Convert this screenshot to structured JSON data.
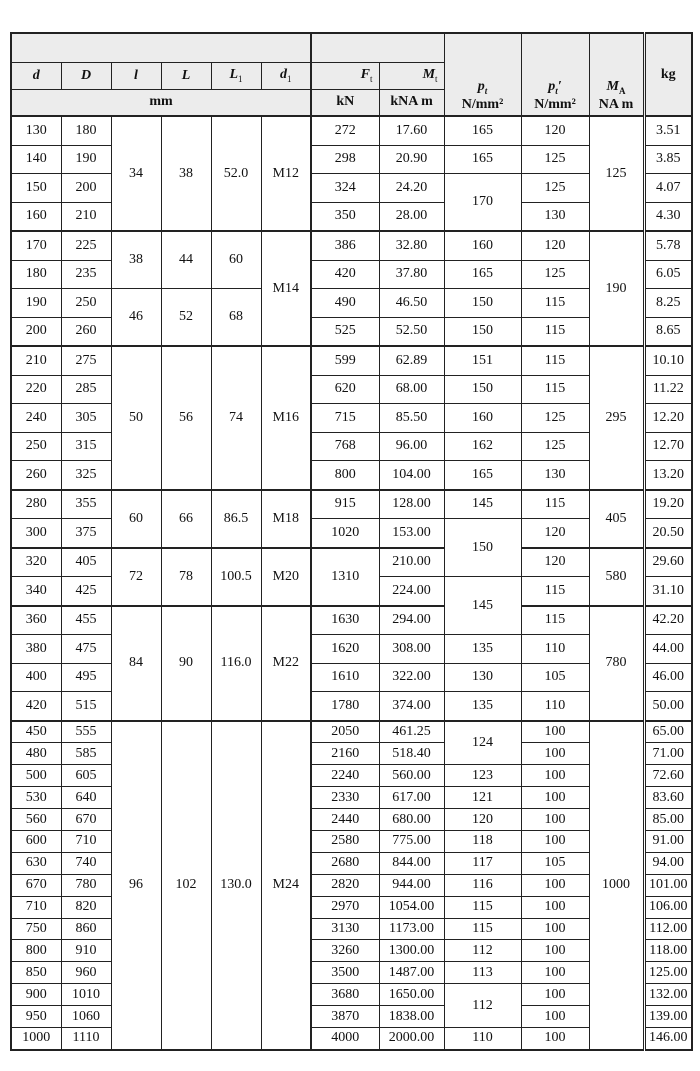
{
  "header": {
    "d": "d",
    "D": "D",
    "l": "l",
    "L": "L",
    "L1": {
      "sym": "L",
      "sub": "1"
    },
    "d1": {
      "sym": "d",
      "sub": "1"
    },
    "Ft": {
      "sym": "F",
      "sub": "t"
    },
    "Mt": {
      "sym": "M",
      "sub": "t"
    },
    "mm": "mm",
    "kN": "kN",
    "kNAm": "kNA  m",
    "pt": {
      "sym": "p",
      "sub": "t",
      "unit": "N/mm²"
    },
    "pt2": {
      "sym": "p",
      "sub": "t",
      "prime": "′",
      "unit": "N/mm²"
    },
    "MA": {
      "sym": "M",
      "sub": "A",
      "unit": "NA  m"
    },
    "kg": "kg"
  },
  "body": {
    "rows": [
      [
        "130",
        "180",
        {
          "v": "34",
          "rs": 4
        },
        {
          "v": "38",
          "rs": 4
        },
        {
          "v": "52.0",
          "rs": 4
        },
        {
          "v": "M12",
          "rs": 4
        },
        "272",
        "17.60",
        "165",
        "120",
        {
          "v": "125",
          "rs": 4
        },
        "3.51"
      ],
      [
        "140",
        "190",
        null,
        null,
        null,
        null,
        "298",
        "20.90",
        "165",
        "125",
        null,
        "3.85"
      ],
      [
        "150",
        "200",
        null,
        null,
        null,
        null,
        "324",
        "24.20",
        {
          "v": "170",
          "rs": 2
        },
        "125",
        null,
        "4.07"
      ],
      [
        "160",
        "210",
        null,
        null,
        null,
        null,
        "350",
        "28.00",
        null,
        "130",
        null,
        "4.30"
      ],
      [
        "170",
        "225",
        {
          "v": "38",
          "rs": 2
        },
        {
          "v": "44",
          "rs": 2
        },
        {
          "v": "60",
          "rs": 2
        },
        {
          "v": "M14",
          "rs": 4
        },
        "386",
        "32.80",
        "160",
        "120",
        {
          "v": "190",
          "rs": 4
        },
        "5.78"
      ],
      [
        "180",
        "235",
        null,
        null,
        null,
        null,
        "420",
        "37.80",
        "165",
        "125",
        null,
        "6.05"
      ],
      [
        "190",
        "250",
        {
          "v": "46",
          "rs": 2
        },
        {
          "v": "52",
          "rs": 2
        },
        {
          "v": "68",
          "rs": 2
        },
        null,
        "490",
        "46.50",
        "150",
        "115",
        null,
        "8.25"
      ],
      [
        "200",
        "260",
        null,
        null,
        null,
        null,
        "525",
        "52.50",
        "150",
        "115",
        null,
        "8.65"
      ],
      [
        "210",
        "275",
        {
          "v": "50",
          "rs": 5
        },
        {
          "v": "56",
          "rs": 5
        },
        {
          "v": "74",
          "rs": 5
        },
        {
          "v": "M16",
          "rs": 5
        },
        "599",
        "62.89",
        "151",
        "115",
        {
          "v": "295",
          "rs": 5
        },
        "10.10"
      ],
      [
        "220",
        "285",
        null,
        null,
        null,
        null,
        "620",
        "68.00",
        "150",
        "115",
        null,
        "11.22"
      ],
      [
        "240",
        "305",
        null,
        null,
        null,
        null,
        "715",
        "85.50",
        "160",
        "125",
        null,
        "12.20"
      ],
      [
        "250",
        "315",
        null,
        null,
        null,
        null,
        "768",
        "96.00",
        "162",
        "125",
        null,
        "12.70"
      ],
      [
        "260",
        "325",
        null,
        null,
        null,
        null,
        "800",
        "104.00",
        "165",
        "130",
        null,
        "13.20"
      ],
      [
        "280",
        "355",
        {
          "v": "60",
          "rs": 2
        },
        {
          "v": "66",
          "rs": 2
        },
        {
          "v": "86.5",
          "rs": 2
        },
        {
          "v": "M18",
          "rs": 2
        },
        "915",
        "128.00",
        "145",
        "115",
        {
          "v": "405",
          "rs": 2
        },
        "19.20"
      ],
      [
        "300",
        "375",
        null,
        null,
        null,
        null,
        "1020",
        "153.00",
        {
          "v": "150",
          "rs": 2
        },
        "120",
        null,
        "20.50"
      ],
      [
        "320",
        "405",
        {
          "v": "72",
          "rs": 2
        },
        {
          "v": "78",
          "rs": 2
        },
        {
          "v": "100.5",
          "rs": 2
        },
        {
          "v": "M20",
          "rs": 2
        },
        {
          "v": "1310",
          "rs": 2
        },
        "210.00",
        null,
        "120",
        {
          "v": "580",
          "rs": 2
        },
        "29.60"
      ],
      [
        "340",
        "425",
        null,
        null,
        null,
        null,
        null,
        "224.00",
        {
          "v": "145",
          "rs": 2
        },
        "115",
        null,
        "31.10"
      ],
      [
        "360",
        "455",
        {
          "v": "84",
          "rs": 4
        },
        {
          "v": "90",
          "rs": 4
        },
        {
          "v": "116.0",
          "rs": 4
        },
        {
          "v": "M22",
          "rs": 4
        },
        "1630",
        "294.00",
        null,
        "115",
        {
          "v": "780",
          "rs": 4
        },
        "42.20"
      ],
      [
        "380",
        "475",
        null,
        null,
        null,
        null,
        "1620",
        "308.00",
        "135",
        "110",
        null,
        "44.00"
      ],
      [
        "400",
        "495",
        null,
        null,
        null,
        null,
        "1610",
        "322.00",
        "130",
        "105",
        null,
        "46.00"
      ],
      [
        "420",
        "515",
        null,
        null,
        null,
        null,
        "1780",
        "374.00",
        "135",
        "110",
        null,
        "50.00"
      ],
      [
        "450",
        "555",
        {
          "v": "96",
          "rs": 15
        },
        {
          "v": "102",
          "rs": 15
        },
        {
          "v": "130.0",
          "rs": 15
        },
        {
          "v": "M24",
          "rs": 15
        },
        "2050",
        "461.25",
        {
          "v": "124",
          "rs": 2
        },
        "100",
        {
          "v": "1000",
          "rs": 15
        },
        "65.00"
      ],
      [
        "480",
        "585",
        null,
        null,
        null,
        null,
        "2160",
        "518.40",
        null,
        "100",
        null,
        "71.00"
      ],
      [
        "500",
        "605",
        null,
        null,
        null,
        null,
        "2240",
        "560.00",
        "123",
        "100",
        null,
        "72.60"
      ],
      [
        "530",
        "640",
        null,
        null,
        null,
        null,
        "2330",
        "617.00",
        "121",
        "100",
        null,
        "83.60"
      ],
      [
        "560",
        "670",
        null,
        null,
        null,
        null,
        "2440",
        "680.00",
        "120",
        "100",
        null,
        "85.00"
      ],
      [
        "600",
        "710",
        null,
        null,
        null,
        null,
        "2580",
        "775.00",
        "118",
        "100",
        null,
        "91.00"
      ],
      [
        "630",
        "740",
        null,
        null,
        null,
        null,
        "2680",
        "844.00",
        "117",
        "105",
        null,
        "94.00"
      ],
      [
        "670",
        "780",
        null,
        null,
        null,
        null,
        "2820",
        "944.00",
        "116",
        "100",
        null,
        "101.00"
      ],
      [
        "710",
        "820",
        null,
        null,
        null,
        null,
        "2970",
        "1054.00",
        "115",
        "100",
        null,
        "106.00"
      ],
      [
        "750",
        "860",
        null,
        null,
        null,
        null,
        "3130",
        "1173.00",
        "115",
        "100",
        null,
        "112.00"
      ],
      [
        "800",
        "910",
        null,
        null,
        null,
        null,
        "3260",
        "1300.00",
        "112",
        "100",
        null,
        "118.00"
      ],
      [
        "850",
        "960",
        null,
        null,
        null,
        null,
        "3500",
        "1487.00",
        "113",
        "100",
        null,
        "125.00"
      ],
      [
        "900",
        "1010",
        null,
        null,
        null,
        null,
        "3680",
        "1650.00",
        {
          "v": "112",
          "rs": 2
        },
        "100",
        null,
        "132.00"
      ],
      [
        "950",
        "1060",
        null,
        null,
        null,
        null,
        "3870",
        "1838.00",
        null,
        "100",
        null,
        "139.00"
      ],
      [
        "1000",
        "1110",
        null,
        null,
        null,
        null,
        "4000",
        "2000.00",
        "110",
        "100",
        null,
        "146.00"
      ]
    ]
  }
}
